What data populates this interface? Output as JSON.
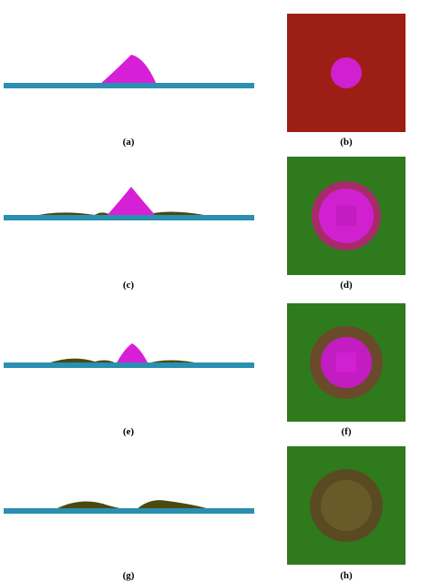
{
  "figure": {
    "panels": [
      {
        "id": "a",
        "label": "(a)",
        "view": "side",
        "state": "initial"
      },
      {
        "id": "b",
        "label": "(b)",
        "view": "top",
        "state": "initial"
      },
      {
        "id": "c",
        "label": "(c)",
        "view": "side",
        "state": "early"
      },
      {
        "id": "d",
        "label": "(d)",
        "view": "top",
        "state": "early"
      },
      {
        "id": "e",
        "label": "(e)",
        "view": "side",
        "state": "mid"
      },
      {
        "id": "f",
        "label": "(f)",
        "view": "top",
        "state": "mid"
      },
      {
        "id": "g",
        "label": "(g)",
        "view": "side",
        "state": "final"
      },
      {
        "id": "h",
        "label": "(h)",
        "view": "top",
        "state": "final"
      }
    ],
    "colors": {
      "substrate": "#2a8fb0",
      "sand_pile": "#d81fd8",
      "deposit": "#4a4a10",
      "top_initial": "#9c1e14",
      "top_later": "#2f7a1c",
      "pile_top": "#d020d0"
    },
    "remaining_pile_fraction": [
      1.0,
      0.7,
      0.45,
      0.0
    ]
  }
}
